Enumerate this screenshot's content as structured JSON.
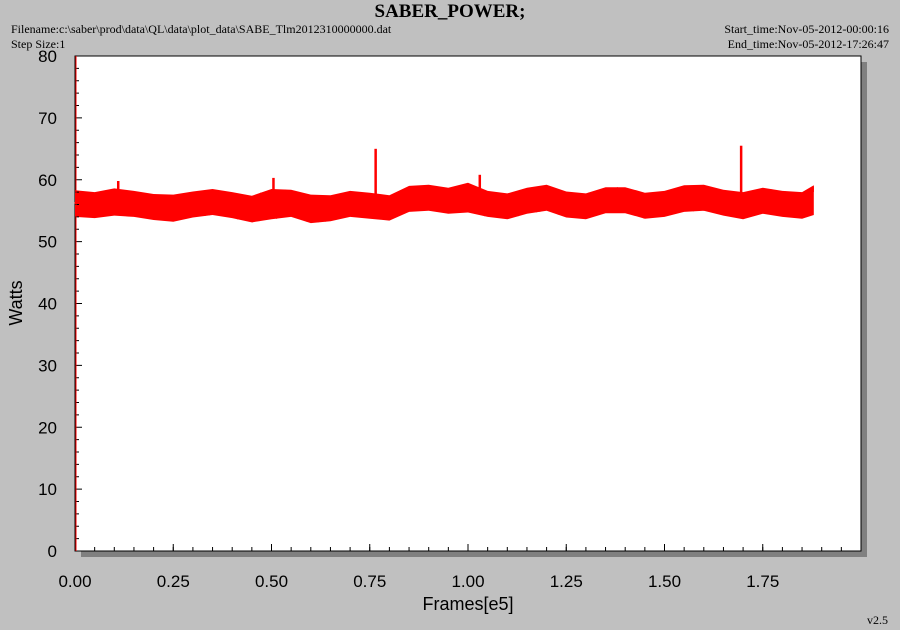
{
  "header": {
    "title": "SABER_POWER;",
    "filename": "Filename:c:\\saber\\prod\\data\\QL\\data\\plot_data\\SABE_Tlm2012310000000.dat",
    "step_size": "Step Size:1",
    "start_time": "Start_time:Nov-05-2012-00:00:16",
    "end_time": "End_time:Nov-05-2012-17:26:47"
  },
  "footer": {
    "version": "v2.5"
  },
  "colors": {
    "series": "#ff0000",
    "background": "#c0c0c0",
    "plot_area": "#ffffff",
    "axis": "#000000"
  },
  "chart_data": {
    "type": "line",
    "title": "SABER_POWER;",
    "xlabel": "Frames[e5]",
    "ylabel": "Watts",
    "xlim": [
      0.0,
      2.0
    ],
    "ylim": [
      0,
      80
    ],
    "x_ticks": [
      "0.00",
      "0.25",
      "0.50",
      "0.75",
      "1.00",
      "1.25",
      "1.50",
      "1.75"
    ],
    "y_ticks": [
      "0",
      "10",
      "20",
      "30",
      "40",
      "50",
      "60",
      "70",
      "80"
    ],
    "grid": false,
    "series": [
      {
        "color": "#ff0000",
        "x": [
          0.0,
          0.05,
          0.1,
          0.15,
          0.2,
          0.25,
          0.3,
          0.35,
          0.4,
          0.45,
          0.5,
          0.55,
          0.6,
          0.65,
          0.7,
          0.75,
          0.8,
          0.85,
          0.9,
          0.95,
          1.0,
          1.05,
          1.1,
          1.15,
          1.2,
          1.25,
          1.3,
          1.35,
          1.4,
          1.45,
          1.5,
          1.55,
          1.6,
          1.65,
          1.7,
          1.75,
          1.8,
          1.85,
          1.88
        ],
        "mean": [
          56.2,
          55.8,
          56.3,
          56.0,
          55.5,
          55.2,
          55.9,
          56.3,
          55.8,
          55.1,
          55.8,
          56.2,
          55.3,
          55.2,
          56.0,
          55.6,
          55.3,
          56.8,
          57.0,
          56.5,
          56.7,
          56.0,
          55.6,
          56.5,
          57.0,
          55.9,
          55.6,
          56.6,
          56.6,
          55.7,
          56.0,
          56.8,
          57.0,
          56.2,
          55.8,
          56.5,
          56.0,
          55.8,
          56.3
        ],
        "min": [
          54.0,
          53.8,
          54.2,
          54.0,
          53.5,
          53.2,
          53.9,
          54.3,
          53.8,
          53.1,
          53.6,
          54.0,
          53.0,
          53.3,
          54.0,
          53.7,
          53.4,
          54.8,
          55.0,
          54.5,
          54.7,
          54.0,
          53.6,
          54.5,
          55.0,
          53.9,
          53.6,
          54.6,
          54.6,
          53.7,
          54.0,
          54.8,
          55.0,
          54.2,
          53.6,
          54.5,
          54.0,
          53.7,
          54.3
        ],
        "max": [
          58.3,
          58.0,
          58.6,
          58.2,
          57.7,
          57.6,
          58.1,
          58.5,
          58.0,
          57.4,
          58.5,
          58.4,
          57.6,
          57.5,
          58.2,
          57.9,
          57.5,
          59.0,
          59.2,
          58.7,
          59.5,
          58.2,
          57.8,
          58.7,
          59.2,
          58.1,
          57.8,
          58.8,
          58.8,
          57.9,
          58.2,
          59.1,
          59.2,
          58.4,
          58.0,
          58.7,
          58.2,
          58.0,
          59.1
        ],
        "spikes": [
          {
            "x": 0.765,
            "y": 65.0
          },
          {
            "x": 1.695,
            "y": 65.5
          },
          {
            "x": 1.03,
            "y": 60.8
          },
          {
            "x": 0.505,
            "y": 60.3
          },
          {
            "x": 0.11,
            "y": 59.8
          }
        ]
      }
    ]
  }
}
